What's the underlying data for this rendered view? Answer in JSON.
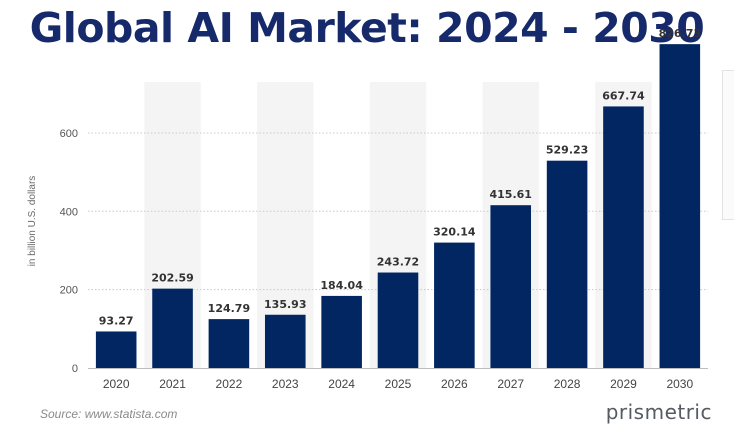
{
  "chart_data": {
    "type": "bar",
    "title": "Global AI Market: 2024 - 2030",
    "ylabel": "in billion U.S. dollars",
    "categories": [
      "2020",
      "2021",
      "2022",
      "2023",
      "2024",
      "2025",
      "2026",
      "2027",
      "2028",
      "2029",
      "2030"
    ],
    "values": [
      93.27,
      202.59,
      124.79,
      135.93,
      184.04,
      243.72,
      320.14,
      415.61,
      529.23,
      667.74,
      826.73
    ],
    "value_labels": [
      "93.27",
      "202.59",
      "124.79",
      "135.93",
      "184.04",
      "243.72",
      "320.14",
      "415.61",
      "529.23",
      "667.74",
      "826.73"
    ],
    "yticks": [
      0,
      200,
      400,
      600
    ],
    "ylim": [
      0,
      725
    ],
    "grid": true,
    "bar_color": "#012662"
  },
  "footer": {
    "source": "Source: www.statista.com",
    "brand": "prismetric"
  },
  "colors": {
    "title": "#16296b",
    "band": "#f4f4f4"
  }
}
